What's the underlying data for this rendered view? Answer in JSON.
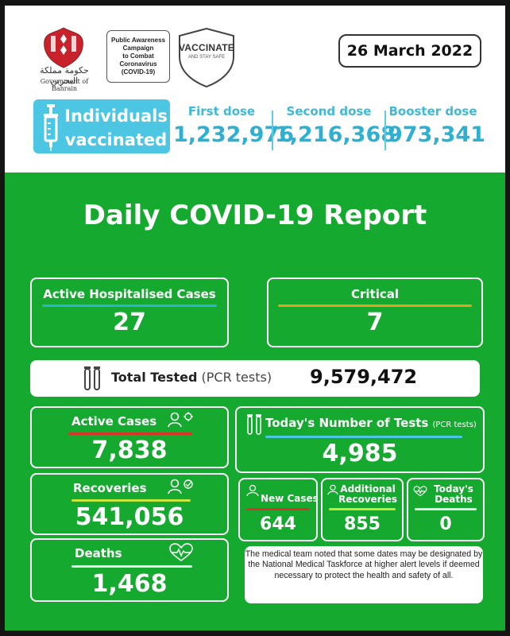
{
  "header": {
    "gov_ar": "حكومة مملكة البحرين",
    "gov_en": "Government of Bahrain",
    "campaign": "Public Awareness\nCampaign\nto Combat\nCoronavirus\n(COVID-19)",
    "vaccinate_title": "VACCINATE",
    "vaccinate_sub": "AND STAY SAFE",
    "date": "26 March 2022"
  },
  "vaccination": {
    "label_line1": "Individuals",
    "label_line2": "vaccinated",
    "first_label": "First dose",
    "first_value": "1,232,976",
    "second_label": "Second dose",
    "second_value": "1,216,368",
    "booster_label": "Booster dose",
    "booster_value": "973,341"
  },
  "report_title": "Daily COVID-19 Report",
  "hospital": {
    "label": "Active Hospitalised Cases",
    "value": "27"
  },
  "critical": {
    "label": "Critical",
    "value": "7"
  },
  "total_tested": {
    "label": "Total Tested",
    "sub": "(PCR tests)",
    "value": "9,579,472"
  },
  "active_cases": {
    "label": "Active Cases",
    "value": "7,838"
  },
  "recoveries": {
    "label": "Recoveries",
    "value": "541,056"
  },
  "deaths": {
    "label": "Deaths",
    "value": "1,468"
  },
  "tests_today": {
    "label": "Today's Number of Tests",
    "sub": "(PCR tests)",
    "value": "4,985"
  },
  "new_cases": {
    "label": "New Cases",
    "value": "644"
  },
  "additional_recoveries": {
    "label_line1": "Additional",
    "label_line2": "Recoveries",
    "value": "855"
  },
  "todays_deaths": {
    "label_line1": "Today's",
    "label_line2": "Deaths",
    "value": "0"
  },
  "note": "The medical team noted that some dates may be designated by the National Medical Taskforce at higher alert levels if deemed necessary to protect the health and safety of all.",
  "colors": {
    "green": "#16a92f",
    "blue": "#2fb0d0",
    "red": "#d8352a",
    "orange": "#e8a020",
    "yellow": "#c5e63a"
  }
}
